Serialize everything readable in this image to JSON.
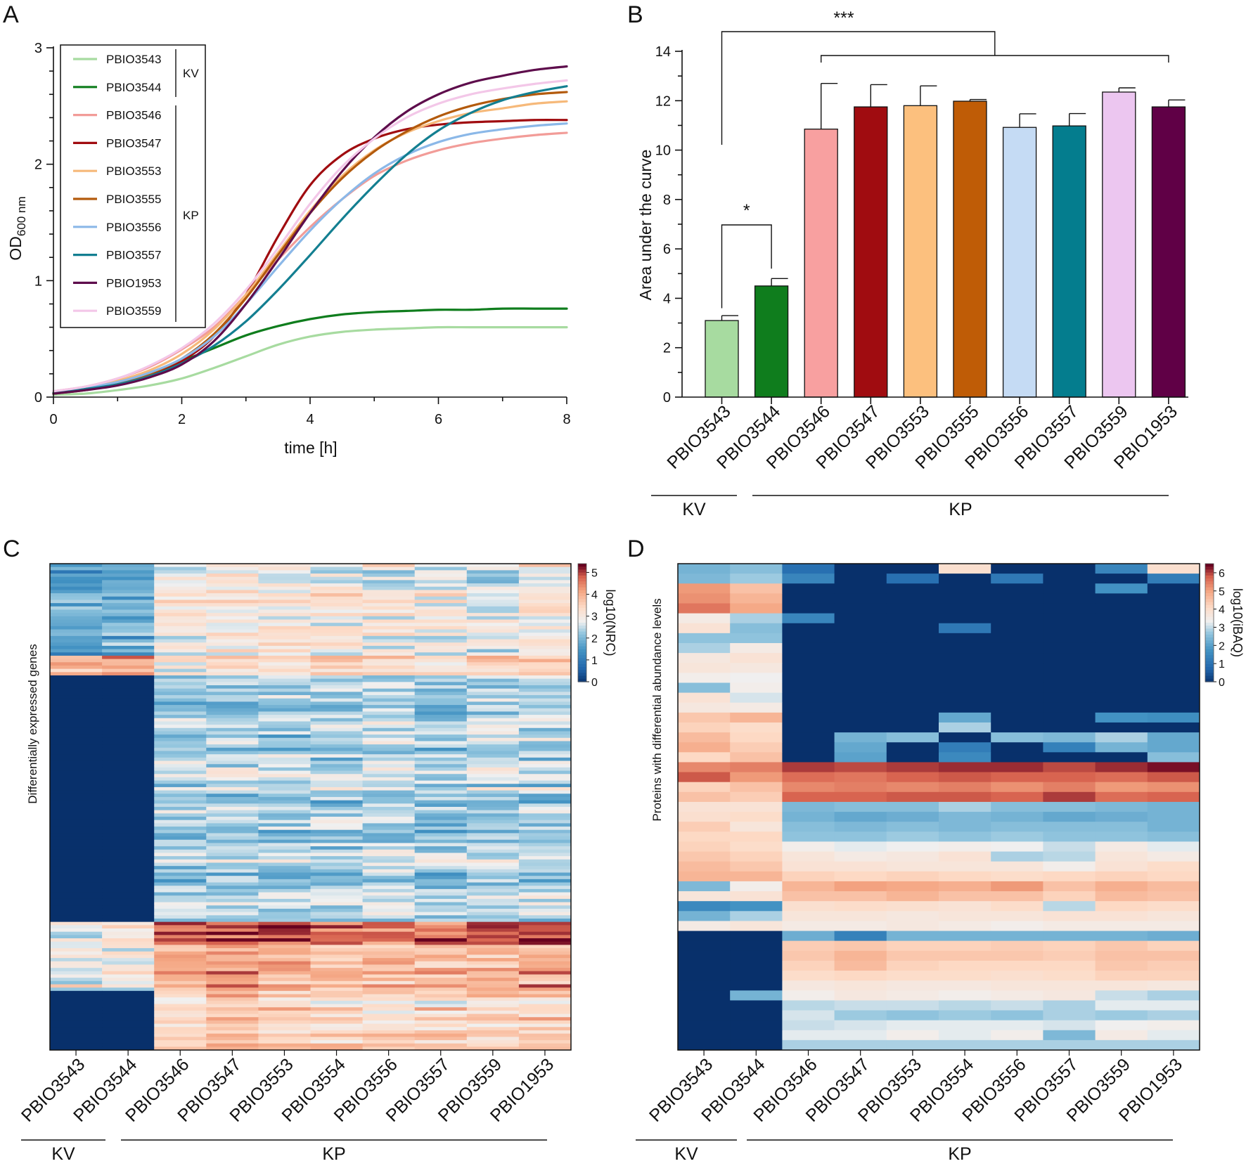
{
  "panels": {
    "a": "A",
    "b": "B",
    "c": "C",
    "d": "D"
  },
  "chart_data": [
    {
      "type": "line",
      "panel": "A",
      "xlabel": "time [h]",
      "ylabel_main": "OD",
      "ylabel_sub": "600 nm",
      "xlim": [
        0,
        8
      ],
      "ylim": [
        0,
        3
      ],
      "xticks": [
        "0",
        "2",
        "4",
        "6",
        "8"
      ],
      "yticks": [
        "0",
        "1",
        "2",
        "3"
      ],
      "legend_position": "top-left",
      "legend_groups": [
        {
          "label": "KV",
          "members": [
            "PBIO3543",
            "PBIO3544"
          ]
        },
        {
          "label": "KP",
          "members": [
            "PBIO3546",
            "PBIO3547",
            "PBIO3553",
            "PBIO3555",
            "PBIO3556",
            "PBIO3557",
            "PBIO1953",
            "PBIO3559"
          ]
        }
      ],
      "x": [
        0,
        0.5,
        1,
        1.5,
        2,
        2.5,
        3,
        3.5,
        4,
        4.5,
        5,
        5.5,
        6,
        6.5,
        7,
        7.5,
        8
      ],
      "series": [
        {
          "name": "PBIO3543",
          "color": "#a7dba0",
          "values": [
            0.02,
            0.03,
            0.06,
            0.1,
            0.16,
            0.25,
            0.35,
            0.45,
            0.52,
            0.56,
            0.58,
            0.59,
            0.6,
            0.6,
            0.6,
            0.6,
            0.6
          ]
        },
        {
          "name": "PBIO3544",
          "color": "#0f7d1d",
          "values": [
            0.03,
            0.07,
            0.13,
            0.21,
            0.31,
            0.42,
            0.53,
            0.61,
            0.67,
            0.71,
            0.73,
            0.74,
            0.75,
            0.75,
            0.76,
            0.76,
            0.76
          ]
        },
        {
          "name": "PBIO3546",
          "color": "#f29c98",
          "values": [
            0.05,
            0.09,
            0.16,
            0.26,
            0.41,
            0.6,
            0.88,
            1.18,
            1.46,
            1.7,
            1.9,
            2.03,
            2.12,
            2.18,
            2.22,
            2.25,
            2.27
          ]
        },
        {
          "name": "PBIO3547",
          "color": "#a00c10",
          "values": [
            0.03,
            0.06,
            0.11,
            0.19,
            0.31,
            0.52,
            0.88,
            1.38,
            1.82,
            2.08,
            2.22,
            2.3,
            2.34,
            2.36,
            2.37,
            2.38,
            2.38
          ]
        },
        {
          "name": "PBIO3553",
          "color": "#f6b97a",
          "values": [
            0.05,
            0.08,
            0.14,
            0.23,
            0.37,
            0.58,
            0.88,
            1.24,
            1.6,
            1.9,
            2.12,
            2.27,
            2.37,
            2.44,
            2.48,
            2.52,
            2.54
          ]
        },
        {
          "name": "PBIO3555",
          "color": "#b35a0c",
          "values": [
            0.04,
            0.07,
            0.12,
            0.2,
            0.33,
            0.54,
            0.85,
            1.22,
            1.58,
            1.88,
            2.11,
            2.28,
            2.41,
            2.5,
            2.56,
            2.6,
            2.62
          ]
        },
        {
          "name": "PBIO3556",
          "color": "#8bb8e8",
          "values": [
            0.05,
            0.08,
            0.13,
            0.21,
            0.33,
            0.52,
            0.8,
            1.12,
            1.43,
            1.7,
            1.92,
            2.08,
            2.19,
            2.26,
            2.3,
            2.33,
            2.35
          ]
        },
        {
          "name": "PBIO3557",
          "color": "#137f91",
          "values": [
            0.04,
            0.07,
            0.11,
            0.18,
            0.29,
            0.44,
            0.65,
            0.92,
            1.22,
            1.53,
            1.82,
            2.08,
            2.29,
            2.44,
            2.55,
            2.62,
            2.67
          ]
        },
        {
          "name": "PBIO1953",
          "color": "#5e0d4c",
          "values": [
            0.03,
            0.06,
            0.1,
            0.17,
            0.28,
            0.48,
            0.8,
            1.18,
            1.58,
            1.94,
            2.23,
            2.45,
            2.6,
            2.7,
            2.76,
            2.81,
            2.84
          ]
        },
        {
          "name": "PBIO3559",
          "color": "#f3c7e8",
          "values": [
            0.05,
            0.09,
            0.16,
            0.27,
            0.42,
            0.63,
            0.92,
            1.28,
            1.66,
            1.98,
            2.22,
            2.4,
            2.52,
            2.6,
            2.65,
            2.69,
            2.72
          ]
        }
      ]
    },
    {
      "type": "bar",
      "panel": "B",
      "ylabel": "Area under the curve",
      "ylim": [
        0,
        14
      ],
      "yticks": [
        "0",
        "2",
        "4",
        "6",
        "8",
        "10",
        "12",
        "14"
      ],
      "categories": [
        "PBIO3543",
        "PBIO3544",
        "PBIO3546",
        "PBIO3547",
        "PBIO3553",
        "PBIO3555",
        "PBIO3556",
        "PBIO3557",
        "PBIO3559",
        "PBIO1953"
      ],
      "values": [
        3.1,
        4.5,
        10.85,
        11.75,
        11.8,
        11.98,
        10.92,
        10.98,
        12.35,
        11.75
      ],
      "errors": [
        0.2,
        0.3,
        1.85,
        0.9,
        0.8,
        0.07,
        0.55,
        0.5,
        0.17,
        0.28
      ],
      "colors": [
        "#a7dba0",
        "#0f7d1d",
        "#f8a0a0",
        "#a00c10",
        "#fcc07e",
        "#bf5c06",
        "#c5dbf4",
        "#047d8e",
        "#ecc6f0",
        "#600046"
      ],
      "groups": [
        {
          "label": "KV",
          "from": 0,
          "to": 1
        },
        {
          "label": "KP",
          "from": 2,
          "to": 9
        }
      ],
      "significance": [
        {
          "label": "*",
          "between": "PBIO3543 vs PBIO3544"
        },
        {
          "label": "***",
          "between": "PBIO3543 vs KP"
        }
      ]
    },
    {
      "type": "heatmap",
      "panel": "C",
      "ylabel": "Differentially expressed genes",
      "colorbar_label": "log10(NRC)",
      "colorbar_range": [
        0,
        5.4
      ],
      "colorbar_ticks": [
        "0",
        "1",
        "2",
        "3",
        "4",
        "5"
      ],
      "columns": [
        "PBIO3543",
        "PBIO3544",
        "PBIO3546",
        "PBIO3547",
        "PBIO3553",
        "PBIO3554",
        "PBIO3556",
        "PBIO3557",
        "PBIO3559",
        "PBIO1953"
      ],
      "groups": [
        {
          "label": "KV",
          "from": 0,
          "to": 1
        },
        {
          "label": "KP",
          "from": 2,
          "to": 9
        }
      ],
      "blocks": [
        {
          "rows": 28,
          "values": [
            1.8,
            1.9,
            3.0,
            3.2,
            3.1,
            3.0,
            2.9,
            2.9,
            2.7,
            3.1
          ]
        },
        {
          "rows": 6,
          "values": [
            3.9,
            4.2,
            3.2,
            3.3,
            3.3,
            3.3,
            3.4,
            3.4,
            3.5,
            3.6
          ]
        },
        {
          "rows": 75,
          "values": [
            0.0,
            0.0,
            2.3,
            2.4,
            2.4,
            2.4,
            2.5,
            2.3,
            2.5,
            2.4
          ]
        },
        {
          "rows": 7,
          "values": [
            3.0,
            3.1,
            5.0,
            5.1,
            5.0,
            4.9,
            4.8,
            4.8,
            4.9,
            5.0
          ]
        },
        {
          "rows": 14,
          "values": [
            2.9,
            3.0,
            4.2,
            4.3,
            4.2,
            4.0,
            4.0,
            3.9,
            4.0,
            4.2
          ]
        },
        {
          "rows": 18,
          "values": [
            0.0,
            0.0,
            3.5,
            3.6,
            3.5,
            3.5,
            3.4,
            3.4,
            3.5,
            3.6
          ]
        }
      ]
    },
    {
      "type": "heatmap",
      "panel": "D",
      "ylabel": "Proteins with differential abundance levels",
      "colorbar_label": "log10(iBAQ)",
      "colorbar_range": [
        0,
        6.5
      ],
      "colorbar_ticks": [
        "0",
        "1",
        "2",
        "3",
        "4",
        "5",
        "6"
      ],
      "columns": [
        "PBIO3543",
        "PBIO3544",
        "PBIO3546",
        "PBIO3547",
        "PBIO3553",
        "PBIO3554",
        "PBIO3556",
        "PBIO3557",
        "PBIO3559",
        "PBIO1953"
      ],
      "groups": [
        {
          "label": "KV",
          "from": 0,
          "to": 1
        },
        {
          "label": "KP",
          "from": 2,
          "to": 9
        }
      ],
      "rows": [
        [
          2.4,
          2.6,
          1.0,
          0,
          0,
          4.0,
          0,
          0,
          1.5,
          4.0
        ],
        [
          2.5,
          2.8,
          1.5,
          0,
          1.0,
          0,
          1.2,
          0,
          0,
          1.3
        ],
        [
          5.2,
          4.6,
          0,
          0,
          0,
          0,
          0,
          0,
          1.8,
          0
        ],
        [
          5.3,
          4.8,
          0,
          0,
          0,
          0,
          0,
          0,
          0,
          0
        ],
        [
          5.6,
          5.0,
          0,
          0,
          0,
          0,
          0,
          0,
          0,
          0
        ],
        [
          3.6,
          2.9,
          1.5,
          0,
          0,
          0,
          0,
          0,
          0,
          0
        ],
        [
          3.9,
          2.6,
          0,
          0,
          0,
          1.2,
          0,
          0,
          0,
          0
        ],
        [
          2.7,
          2.7,
          0,
          0,
          0,
          0,
          0,
          0,
          0,
          0
        ],
        [
          2.9,
          3.6,
          0,
          0,
          0,
          0,
          0,
          0,
          0,
          0
        ],
        [
          3.7,
          3.9,
          0,
          0,
          0,
          0,
          0,
          0,
          0,
          0
        ],
        [
          3.8,
          3.7,
          0,
          0,
          0,
          0,
          0,
          0,
          0,
          0
        ],
        [
          3.5,
          3.4,
          0,
          0,
          0,
          0,
          0,
          0,
          0,
          0
        ],
        [
          2.6,
          3.5,
          0,
          0,
          0,
          0,
          0,
          0,
          0,
          0
        ],
        [
          3.9,
          3.2,
          0,
          0,
          0,
          0,
          0,
          0,
          0,
          0
        ],
        [
          3.7,
          3.6,
          0,
          0,
          0,
          0,
          0,
          0,
          0,
          0
        ],
        [
          4.5,
          4.8,
          0,
          0,
          0,
          2.2,
          0,
          0,
          1.8,
          1.7
        ],
        [
          4.3,
          4.1,
          0,
          0,
          0,
          2.9,
          0,
          0,
          0,
          0
        ],
        [
          4.7,
          4.2,
          0,
          2.4,
          2.6,
          0,
          2.6,
          2.5,
          2.9,
          2.2
        ],
        [
          4.9,
          4.4,
          0,
          2.2,
          0,
          1.3,
          0,
          1.4,
          2.4,
          2.2
        ],
        [
          4.2,
          4.6,
          0,
          2.1,
          0,
          1.6,
          0,
          0,
          0,
          2.6
        ],
        [
          5.4,
          5.5,
          6.1,
          6.0,
          6.1,
          6.2,
          6.2,
          6.0,
          6.2,
          6.4
        ],
        [
          5.9,
          5.2,
          5.7,
          5.6,
          5.8,
          5.9,
          5.8,
          5.8,
          5.7,
          5.9
        ],
        [
          4.3,
          4.6,
          5.4,
          5.5,
          5.4,
          5.5,
          5.3,
          5.5,
          5.2,
          5.3
        ],
        [
          4.6,
          4.4,
          5.8,
          5.8,
          5.9,
          5.9,
          5.8,
          6.1,
          5.7,
          5.8
        ],
        [
          3.9,
          3.9,
          2.5,
          2.6,
          2.6,
          2.9,
          2.6,
          2.6,
          2.5,
          2.4
        ],
        [
          4.0,
          4.1,
          2.4,
          2.2,
          2.3,
          2.5,
          2.4,
          2.2,
          2.3,
          2.4
        ],
        [
          4.4,
          3.8,
          2.6,
          2.5,
          2.6,
          2.5,
          2.6,
          2.6,
          2.6,
          2.4
        ],
        [
          4.2,
          4.2,
          2.7,
          2.7,
          2.8,
          2.7,
          2.8,
          2.7,
          2.7,
          2.6
        ],
        [
          4.3,
          4.1,
          3.5,
          3.3,
          3.4,
          3.5,
          3.4,
          3.1,
          3.6,
          3.3
        ],
        [
          4.5,
          4.3,
          3.8,
          3.6,
          3.7,
          3.9,
          2.9,
          3.0,
          3.8,
          3.6
        ],
        [
          4.7,
          4.5,
          3.9,
          3.9,
          3.8,
          3.8,
          3.8,
          3.5,
          3.9,
          4.1
        ],
        [
          4.8,
          4.8,
          4.3,
          4.2,
          4.3,
          4.2,
          4.1,
          4.2,
          4.3,
          4.2
        ],
        [
          2.5,
          3.5,
          4.8,
          5.1,
          5.0,
          4.9,
          5.2,
          4.6,
          4.9,
          4.7
        ],
        [
          3.8,
          3.9,
          4.6,
          4.6,
          4.8,
          4.6,
          4.6,
          4.3,
          4.7,
          4.6
        ],
        [
          1.6,
          1.8,
          4.0,
          4.1,
          4.0,
          3.9,
          4.1,
          3.0,
          4.2,
          4.1
        ],
        [
          2.4,
          2.9,
          3.8,
          3.8,
          3.7,
          3.8,
          3.8,
          3.9,
          3.9,
          3.8
        ],
        [
          3.6,
          3.8,
          3.6,
          3.6,
          3.7,
          3.6,
          3.5,
          3.6,
          3.6,
          3.6
        ],
        [
          0,
          0,
          2.3,
          1.4,
          2.4,
          2.4,
          2.4,
          2.4,
          2.4,
          2.3
        ],
        [
          0,
          0,
          4.4,
          4.5,
          4.3,
          4.3,
          4.4,
          4.3,
          4.5,
          4.3
        ],
        [
          0,
          0,
          4.5,
          4.8,
          4.5,
          4.5,
          4.5,
          4.4,
          4.6,
          4.6
        ],
        [
          0,
          0,
          4.3,
          4.7,
          4.3,
          4.2,
          4.2,
          4.2,
          4.5,
          4.4
        ],
        [
          0,
          0,
          4.1,
          4.2,
          4.1,
          4.1,
          4.0,
          4.1,
          4.3,
          4.3
        ],
        [
          0,
          0,
          3.7,
          3.8,
          3.7,
          3.7,
          3.8,
          3.8,
          3.8,
          3.7
        ],
        [
          0,
          2.4,
          3.5,
          3.7,
          3.6,
          3.5,
          3.6,
          3.7,
          3.1,
          2.9
        ],
        [
          0,
          0,
          3.0,
          3.1,
          3.1,
          3.0,
          3.1,
          2.9,
          3.3,
          3.3
        ],
        [
          0,
          0,
          3.2,
          2.8,
          2.7,
          2.8,
          2.7,
          2.9,
          2.8,
          2.9
        ],
        [
          0,
          0,
          3.1,
          3.2,
          3.3,
          3.3,
          3.3,
          3.2,
          3.4,
          3.5
        ],
        [
          0,
          0,
          3.3,
          3.3,
          3.5,
          3.3,
          3.5,
          2.5,
          3.6,
          3.3
        ],
        [
          0,
          0,
          2.9,
          2.9,
          2.9,
          2.9,
          2.9,
          2.9,
          2.9,
          2.9
        ]
      ]
    }
  ]
}
